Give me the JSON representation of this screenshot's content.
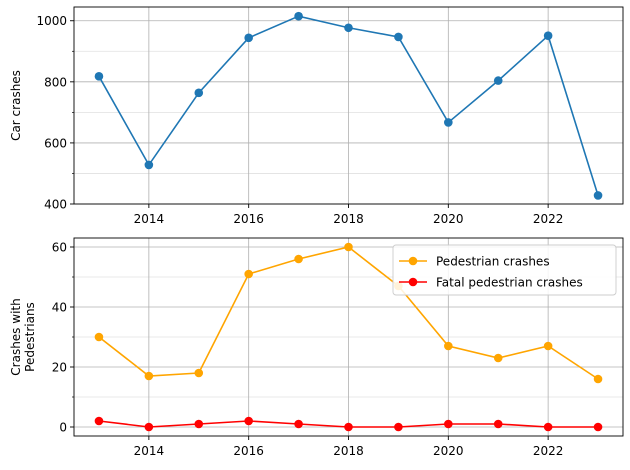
{
  "chart_data": [
    {
      "type": "line",
      "x": [
        2013,
        2014,
        2015,
        2016,
        2017,
        2018,
        2019,
        2020,
        2021,
        2022,
        2023
      ],
      "xlim": [
        2012.5,
        2023.5
      ],
      "xticks": [
        2014,
        2016,
        2018,
        2020,
        2022
      ],
      "ylim": [
        400,
        1045
      ],
      "yticks": [
        400,
        600,
        800,
        1000
      ],
      "yminor": [
        500,
        700,
        900
      ],
      "xlabel": "",
      "ylabel": "Car crashes",
      "grid": true,
      "legend": false,
      "series": [
        {
          "color": "#1f77b4",
          "marker": "circle",
          "values": [
            818,
            528,
            764,
            944,
            1015,
            977,
            947,
            667,
            804,
            951,
            428
          ]
        }
      ]
    },
    {
      "type": "line",
      "x": [
        2013,
        2014,
        2015,
        2016,
        2017,
        2018,
        2019,
        2020,
        2021,
        2022,
        2023
      ],
      "xlim": [
        2012.5,
        2023.5
      ],
      "xticks": [
        2014,
        2016,
        2018,
        2020,
        2022
      ],
      "ylim": [
        -3,
        63
      ],
      "yticks": [
        0,
        20,
        40,
        60
      ],
      "yminor": [
        10,
        30,
        50
      ],
      "xlabel": "",
      "ylabel": [
        "Crashes with",
        "Pedestrians"
      ],
      "grid": true,
      "legend": "top-right",
      "series": [
        {
          "name": "Pedestrian crashes",
          "color": "#ffa500",
          "marker": "circle",
          "values": [
            30,
            17,
            18,
            51,
            56,
            60,
            47,
            27,
            23,
            27,
            16
          ]
        },
        {
          "name": "Fatal pedestrian crashes",
          "color": "#ff0000",
          "marker": "circle",
          "values": [
            2,
            0,
            1,
            2,
            1,
            0,
            0,
            1,
            1,
            0,
            0
          ]
        }
      ]
    }
  ]
}
